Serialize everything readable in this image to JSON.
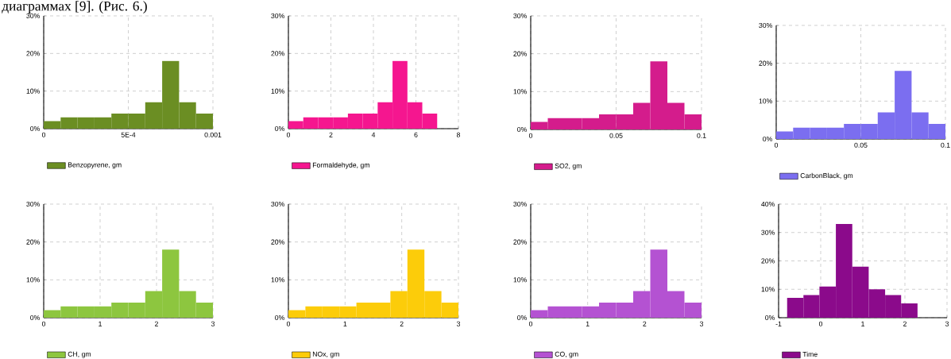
{
  "chart_data": [
    {
      "type": "histogram",
      "annotations": [
        "диаграммах [9]. (Рис. 6.)"
      ],
      "bins": [
        0,
        0.0001,
        0.0002,
        0.0003,
        0.0004,
        0.0005,
        0.0006,
        0.0007,
        0.0008,
        0.0009,
        0.001
      ],
      "series": [
        {
          "name": "Benzopyrene, gm",
          "color": "#6b8e23",
          "values": [
            2,
            3,
            3,
            3,
            4,
            4,
            7,
            18,
            7,
            4
          ]
        }
      ],
      "xlim": [
        0,
        0.001
      ],
      "xticks": [
        0,
        {
          "value": 0.0005,
          "label": "5E-4"
        },
        0.001
      ],
      "ylim": [
        0,
        30
      ],
      "yticks": [
        {
          "value": 0,
          "label": "0%"
        },
        {
          "value": 10,
          "label": "10%"
        },
        {
          "value": 20,
          "label": "20%"
        },
        {
          "value": 30,
          "label": "30%"
        }
      ],
      "grid": true,
      "legend": "bottom"
    },
    {
      "type": "histogram",
      "bins": [
        0,
        0.7,
        1.4,
        2.1,
        2.8,
        3.5,
        4.2,
        4.9,
        5.6,
        6.3,
        7.0
      ],
      "series": [
        {
          "name": "Formaldehyde, gm",
          "color": "#f5168f",
          "values": [
            2,
            3,
            3,
            3,
            4,
            4,
            7,
            18,
            7,
            4
          ]
        }
      ],
      "xlim": [
        0,
        8
      ],
      "xticks": [
        0,
        2,
        4,
        6,
        8
      ],
      "ylim": [
        0,
        30
      ],
      "yticks": [
        {
          "value": 0,
          "label": "0%"
        },
        {
          "value": 10,
          "label": "10%"
        },
        {
          "value": 20,
          "label": "20%"
        },
        {
          "value": 30,
          "label": "30%"
        }
      ],
      "grid": true,
      "legend": "bottom"
    },
    {
      "type": "histogram",
      "bins": [
        0,
        0.01,
        0.02,
        0.03,
        0.04,
        0.05,
        0.06,
        0.07,
        0.08,
        0.09,
        0.1
      ],
      "series": [
        {
          "name": "SO2, gm",
          "color": "#d41c8c",
          "values": [
            2,
            3,
            3,
            3,
            4,
            4,
            7,
            18,
            7,
            4
          ]
        }
      ],
      "xlim": [
        0,
        0.1
      ],
      "xticks": [
        0,
        0.05,
        0.1
      ],
      "ylim": [
        0,
        30
      ],
      "yticks": [
        {
          "value": 0,
          "label": "0%"
        },
        {
          "value": 10,
          "label": "10%"
        },
        {
          "value": 20,
          "label": "20%"
        },
        {
          "value": 30,
          "label": "30%"
        }
      ],
      "grid": true,
      "legend": "bottom"
    },
    {
      "type": "histogram",
      "bins": [
        0,
        0.01,
        0.02,
        0.03,
        0.04,
        0.05,
        0.06,
        0.07,
        0.08,
        0.09,
        0.1
      ],
      "series": [
        {
          "name": "CarbonBlack, gm",
          "color": "#7b6ef0",
          "values": [
            2,
            3,
            3,
            3,
            4,
            4,
            7,
            18,
            7,
            4
          ]
        }
      ],
      "xlim": [
        0,
        0.1
      ],
      "xticks": [
        0,
        0.05,
        0.1
      ],
      "ylim": [
        0,
        30
      ],
      "yticks": [
        {
          "value": 0,
          "label": "0%"
        },
        {
          "value": 10,
          "label": "10%"
        },
        {
          "value": 20,
          "label": "20%"
        },
        {
          "value": 30,
          "label": "30%"
        }
      ],
      "grid": true,
      "legend": "bottom"
    },
    {
      "type": "histogram",
      "bins": [
        0,
        0.3,
        0.6,
        0.9,
        1.2,
        1.5,
        1.8,
        2.1,
        2.4,
        2.7,
        3.0
      ],
      "series": [
        {
          "name": "CH, gm",
          "color": "#8dc63f",
          "values": [
            2,
            3,
            3,
            3,
            4,
            4,
            7,
            18,
            7,
            4
          ]
        }
      ],
      "xlim": [
        0,
        3
      ],
      "xticks": [
        0,
        1,
        2,
        3
      ],
      "ylim": [
        0,
        30
      ],
      "yticks": [
        {
          "value": 0,
          "label": "0%"
        },
        {
          "value": 10,
          "label": "10%"
        },
        {
          "value": 20,
          "label": "20%"
        },
        {
          "value": 30,
          "label": "30%"
        }
      ],
      "grid": true,
      "legend": "bottom"
    },
    {
      "type": "histogram",
      "bins": [
        0,
        0.3,
        0.6,
        0.9,
        1.2,
        1.5,
        1.8,
        2.1,
        2.4,
        2.7,
        3.0
      ],
      "series": [
        {
          "name": "NOx, gm",
          "color": "#fccc0a",
          "values": [
            2,
            3,
            3,
            3,
            4,
            4,
            7,
            18,
            7,
            4
          ]
        }
      ],
      "xlim": [
        0,
        3
      ],
      "xticks": [
        0,
        1,
        2,
        3
      ],
      "ylim": [
        0,
        30
      ],
      "yticks": [
        {
          "value": 0,
          "label": "0%"
        },
        {
          "value": 10,
          "label": "10%"
        },
        {
          "value": 20,
          "label": "20%"
        },
        {
          "value": 30,
          "label": "30%"
        }
      ],
      "grid": true,
      "legend": "bottom"
    },
    {
      "type": "histogram",
      "bins": [
        0,
        0.3,
        0.6,
        0.9,
        1.2,
        1.5,
        1.8,
        2.1,
        2.4,
        2.7,
        3.0
      ],
      "series": [
        {
          "name": "CO, gm",
          "color": "#b452d2",
          "values": [
            2,
            3,
            3,
            3,
            4,
            4,
            7,
            18,
            7,
            4
          ]
        }
      ],
      "xlim": [
        0,
        3
      ],
      "xticks": [
        0,
        1,
        2,
        3
      ],
      "ylim": [
        0,
        30
      ],
      "yticks": [
        {
          "value": 0,
          "label": "0%"
        },
        {
          "value": 10,
          "label": "10%"
        },
        {
          "value": 20,
          "label": "20%"
        },
        {
          "value": 30,
          "label": "30%"
        }
      ],
      "grid": true,
      "legend": "bottom"
    },
    {
      "type": "histogram",
      "bins": [
        -0.8,
        -0.41,
        -0.03,
        0.36,
        0.75,
        1.14,
        1.53,
        1.91,
        2.3
      ],
      "series": [
        {
          "name": "Time",
          "color": "#8b0a8b",
          "values": [
            7,
            8,
            11,
            33,
            18,
            10,
            8,
            5
          ]
        }
      ],
      "xlim": [
        -1,
        3
      ],
      "xticks": [
        -1,
        0,
        1,
        2,
        3
      ],
      "ylim": [
        0,
        40
      ],
      "yticks": [
        {
          "value": 0,
          "label": "0%"
        },
        {
          "value": 10,
          "label": "10%"
        },
        {
          "value": 20,
          "label": "20%"
        },
        {
          "value": 30,
          "label": "30%"
        },
        {
          "value": 40,
          "label": "40%"
        }
      ],
      "grid": true,
      "legend": "bottom"
    }
  ]
}
